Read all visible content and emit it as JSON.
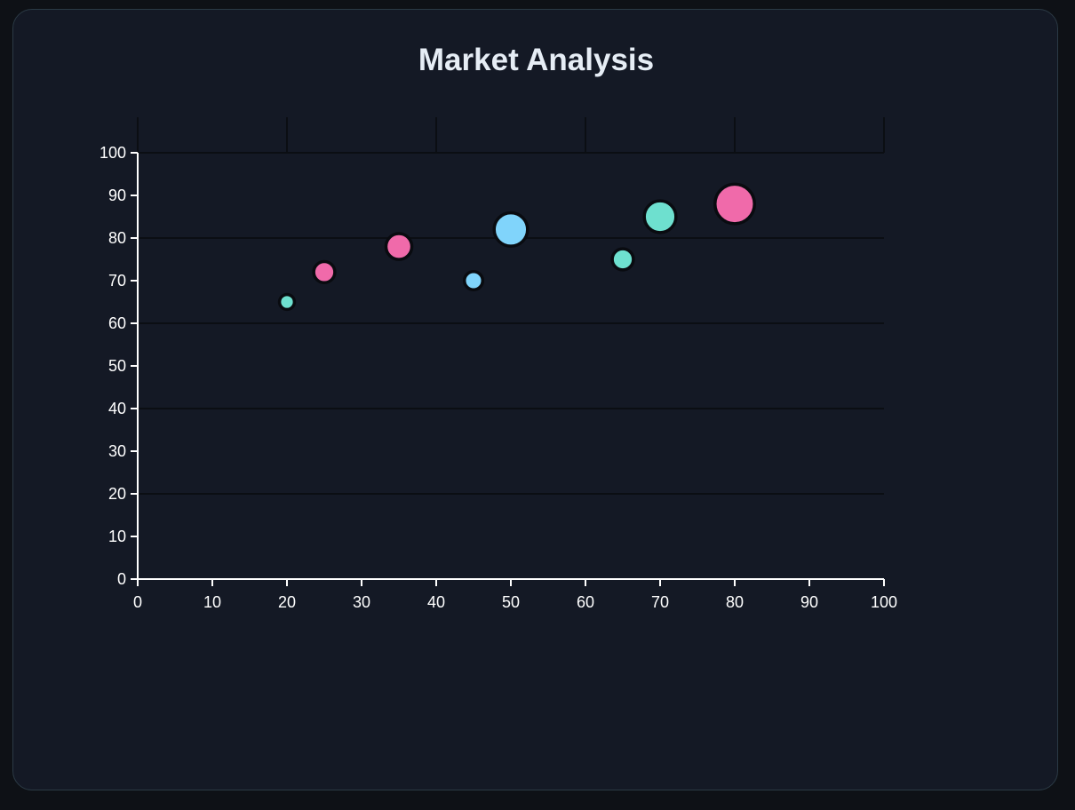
{
  "chart_data": {
    "type": "scatter",
    "title": "Market Analysis",
    "xlabel": "",
    "ylabel": "",
    "xlim": [
      0,
      100
    ],
    "ylim": [
      0,
      100
    ],
    "x_ticks": [
      "0",
      "10",
      "20",
      "30",
      "40",
      "50",
      "60",
      "70",
      "80",
      "90",
      "100"
    ],
    "y_ticks": [
      "0",
      "10",
      "20",
      "30",
      "40",
      "50",
      "60",
      "70",
      "80",
      "90",
      "100"
    ],
    "grid": true,
    "points": [
      {
        "x": 20,
        "y": 65,
        "size": 1,
        "color": "#6ee0cf"
      },
      {
        "x": 25,
        "y": 72,
        "size": 2,
        "color": "#f06aaa"
      },
      {
        "x": 35,
        "y": 78,
        "size": 3,
        "color": "#f06aaa"
      },
      {
        "x": 45,
        "y": 70,
        "size": 1.5,
        "color": "#80d4fb"
      },
      {
        "x": 50,
        "y": 82,
        "size": 5,
        "color": "#80d4fb"
      },
      {
        "x": 65,
        "y": 75,
        "size": 2,
        "color": "#6ee0cf"
      },
      {
        "x": 70,
        "y": 85,
        "size": 4.5,
        "color": "#6ee0cf"
      },
      {
        "x": 80,
        "y": 88,
        "size": 7,
        "color": "#f06aaa"
      }
    ]
  },
  "colors": {
    "background": "#141925",
    "text": "#ffffff",
    "gridline": "#0b0e13"
  }
}
